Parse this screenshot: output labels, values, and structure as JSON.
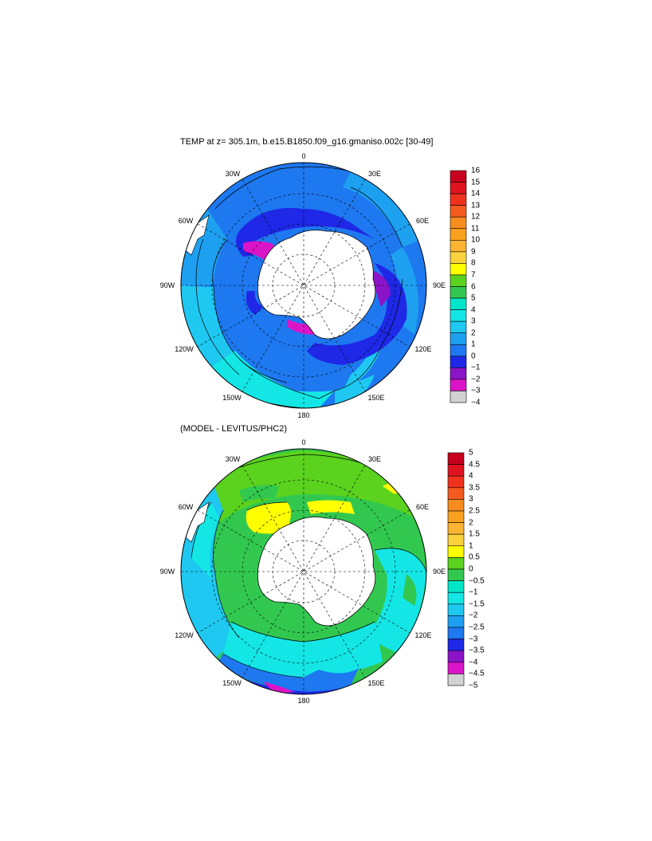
{
  "map1": {
    "title": "TEMP at z= 305.1m, b.e15.B1850.f09_g16.gmaniso.002c [30-49]",
    "lon_labels": [
      "0",
      "30E",
      "60E",
      "90E",
      "120E",
      "150E",
      "180",
      "150W",
      "120W",
      "90W",
      "60W",
      "30W"
    ],
    "colorbar": {
      "labels": [
        "16",
        "15",
        "14",
        "13",
        "12",
        "11",
        "10",
        "9",
        "8",
        "7",
        "6",
        "5",
        "4",
        "3",
        "2",
        "1",
        "0",
        "−1",
        "−2",
        "−3",
        "−4"
      ],
      "colors": [
        "#c8001e",
        "#e0141e",
        "#f0321e",
        "#f55a1e",
        "#f78c1e",
        "#f9a01e",
        "#fab432",
        "#fad23c",
        "#ffff00",
        "#5ad21e",
        "#32c850",
        "#00e6c8",
        "#14e6e6",
        "#1ec8f0",
        "#1ea0f0",
        "#1e78f0",
        "#1e28e6",
        "#8c14c8",
        "#dc14c8",
        "#d2d2d2",
        "#707070"
      ]
    }
  },
  "map2": {
    "title": "(MODEL - LEVITUS/PHC2)",
    "lon_labels": [
      "0",
      "30E",
      "60E",
      "90E",
      "120E",
      "150E",
      "180",
      "150W",
      "120W",
      "90W",
      "60W",
      "30W"
    ],
    "colorbar": {
      "labels": [
        "5",
        "4.5",
        "4",
        "3.5",
        "3",
        "2.5",
        "2",
        "1.5",
        "1",
        "0.5",
        "0",
        "−0.5",
        "−1",
        "−1.5",
        "−2",
        "−2.5",
        "−3",
        "−3.5",
        "−4",
        "−4.5",
        "−5"
      ],
      "colors": [
        "#c8001e",
        "#e0141e",
        "#f0321e",
        "#f55a1e",
        "#f78c1e",
        "#f9a01e",
        "#fab432",
        "#fad23c",
        "#ffff00",
        "#5ad21e",
        "#32c850",
        "#00e6c8",
        "#14e6e6",
        "#1ec8f0",
        "#1ea0f0",
        "#1e78f0",
        "#1e28e6",
        "#8c14c8",
        "#dc14c8",
        "#d2d2d2",
        "#707070"
      ]
    }
  }
}
